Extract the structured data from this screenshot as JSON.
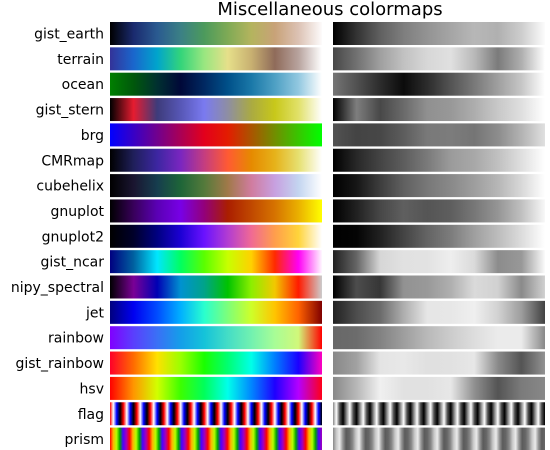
{
  "chart_data": {
    "type": "heatmap",
    "title": "Miscellaneous colormaps",
    "left_panel": "color",
    "right_panel": "grayscale (lightness)",
    "colormaps": [
      {
        "name": "gist_earth",
        "stops": [
          "#000000",
          "#1a2a6e",
          "#2a5a90",
          "#3b8085",
          "#4c9a5c",
          "#7faa55",
          "#b4b45e",
          "#c8a278",
          "#dcc2b4",
          "#fdfbfb"
        ]
      },
      {
        "name": "terrain",
        "stops": [
          "#333399",
          "#1a66cc",
          "#00a4cc",
          "#33d47a",
          "#99e680",
          "#e6e08a",
          "#c8b071",
          "#8f6b5a",
          "#b8a39e",
          "#ffffff"
        ]
      },
      {
        "name": "ocean",
        "stops": [
          "#007f00",
          "#00580b",
          "#003030",
          "#000838",
          "#002861",
          "#005089",
          "#1a78a8",
          "#4ea0c4",
          "#92c8e0",
          "#ffffff"
        ]
      },
      {
        "name": "gist_stern",
        "stops": [
          "#000000",
          "#e61c30",
          "#3d3b7a",
          "#5757b6",
          "#7a7af0",
          "#8e8ea3",
          "#aaaa42",
          "#c8c81a",
          "#e1e169",
          "#ffffff"
        ]
      },
      {
        "name": "brg",
        "stops": [
          "#0000ff",
          "#3800c6",
          "#71008e",
          "#aa0055",
          "#e3001c",
          "#e31c00",
          "#aa5500",
          "#718e00",
          "#38c600",
          "#00ff00"
        ]
      },
      {
        "name": "CMRmap",
        "stops": [
          "#000000",
          "#1f1f5a",
          "#3c26a1",
          "#7a26c0",
          "#c43d80",
          "#ff5a33",
          "#e68a00",
          "#e6b21a",
          "#e6e070",
          "#ffffff"
        ]
      },
      {
        "name": "cubehelix",
        "stops": [
          "#000000",
          "#1a1530",
          "#163d4e",
          "#1e6538",
          "#547a3b",
          "#a07949",
          "#d07c9f",
          "#c7a0e0",
          "#c3d5f0",
          "#ffffff"
        ]
      },
      {
        "name": "gnuplot",
        "stops": [
          "#000000",
          "#38005a",
          "#5a00b4",
          "#7800e6",
          "#93007a",
          "#aa1e00",
          "#c04800",
          "#d67300",
          "#eab000",
          "#ffff00"
        ]
      },
      {
        "name": "gnuplot2",
        "stops": [
          "#000000",
          "#00002a",
          "#000080",
          "#1c00d4",
          "#6a12ff",
          "#b23cd2",
          "#f06a94",
          "#ff9e4c",
          "#ffd43a",
          "#ffffff"
        ]
      },
      {
        "name": "gist_ncar",
        "stops": [
          "#000080",
          "#0060a0",
          "#00e6ff",
          "#00ff60",
          "#5aff00",
          "#c8ff00",
          "#ffd100",
          "#ff2a00",
          "#ff00f5",
          "#fff8ff"
        ]
      },
      {
        "name": "nipy_spectral",
        "stops": [
          "#000000",
          "#7a0096",
          "#0000b4",
          "#0092d0",
          "#00a38a",
          "#00c300",
          "#8cef00",
          "#f2c800",
          "#ff1a00",
          "#cccccc"
        ]
      },
      {
        "name": "jet",
        "stops": [
          "#00007f",
          "#0000f0",
          "#004cff",
          "#00b0ff",
          "#29ffce",
          "#7dff7a",
          "#ceff29",
          "#ffc400",
          "#ff6200",
          "#7f0000"
        ]
      },
      {
        "name": "rainbow",
        "stops": [
          "#8000ff",
          "#5a3ffd",
          "#3a70f6",
          "#149ee9",
          "#14c3d9",
          "#44ddc6",
          "#72f1b0",
          "#a8fd96",
          "#d1f77a",
          "#ff0000"
        ]
      },
      {
        "name": "gist_rainbow",
        "stops": [
          "#ff0029",
          "#ff6b00",
          "#ffe100",
          "#9aff00",
          "#1aff00",
          "#00ff72",
          "#00ffe8",
          "#007eff",
          "#1c00ff",
          "#ff00bf"
        ]
      },
      {
        "name": "hsv",
        "stops": [
          "#ff0000",
          "#ff9600",
          "#d2ff00",
          "#3cff00",
          "#00ff5a",
          "#00ffeb",
          "#0087ff",
          "#1e00ff",
          "#b400ff",
          "#ff0018"
        ]
      }
    ],
    "periodic_colormaps": [
      {
        "name": "flag",
        "pattern": [
          "#ff0000",
          "#ffffff",
          "#0000ff",
          "#000000"
        ],
        "repeats": 16
      },
      {
        "name": "prism",
        "pattern": [
          "#ff0000",
          "#ffb200",
          "#b4ff00",
          "#00a500",
          "#4c00ff",
          "#a200ba"
        ],
        "repeats": 11
      }
    ],
    "xlabel": "",
    "ylabel": "",
    "grid": false,
    "legend": false
  }
}
